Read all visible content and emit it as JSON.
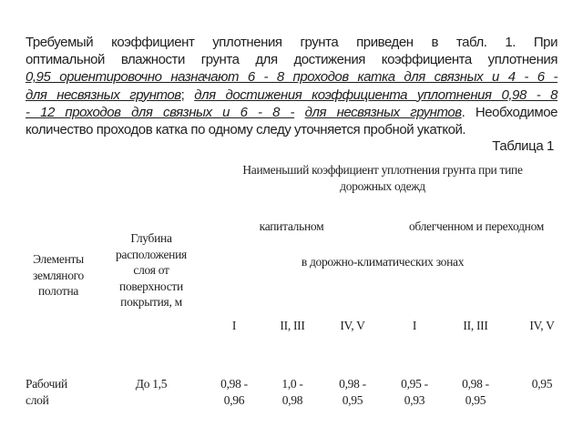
{
  "paragraph": {
    "line1": "Требуемый коэффициент уплотнения грунта приведен в табл. 1. При",
    "line2": "оптимальной влажности грунта для достижения коэффициента уплотнения",
    "line3": "0,95 ориентировочно назначают 6 - 8 проходов катка для связных и 4 - 6 -",
    "line4a": "для несвязных грунтов",
    "line4b": ";",
    "line4c": "для достижения коэффициента уплотнения 0,98 - 8",
    "line5a": "- 12 проходов для связных и 6 - 8 -",
    "line5b": "для несвязных грунтов",
    "line5c": ". Необходимое",
    "line6": "количество проходов катка по одному следу уточняется пробной укаткой."
  },
  "table_caption": "Таблица 1",
  "table": {
    "col_elements": [
      "Элементы",
      "земляного",
      "полотна"
    ],
    "col_depth": [
      "Глубина",
      "расположения",
      "слоя от",
      "поверхности",
      "покрытия, м"
    ],
    "header_main": [
      "Наименьший коэффициент уплотнения грунта при типе",
      "дорожных одежд"
    ],
    "type_capital": "капитальном",
    "type_light": "облегченном и переходном",
    "zones_header": "в дорожно-климатических зонах",
    "zones": [
      "I",
      "II, III",
      "IV, V",
      "I",
      "II, III",
      "IV, V"
    ],
    "rows": [
      {
        "element": [
          "Рабочий",
          "слой"
        ],
        "depth": "До 1,5",
        "values": [
          [
            "0,98 -",
            "0,96"
          ],
          [
            "1,0 -",
            "0,98"
          ],
          [
            "0,98 -",
            "0,95"
          ],
          [
            "0,95 -",
            "0,93"
          ],
          [
            "0,98 -",
            "0,95"
          ],
          [
            "0,95",
            ""
          ]
        ]
      }
    ]
  }
}
